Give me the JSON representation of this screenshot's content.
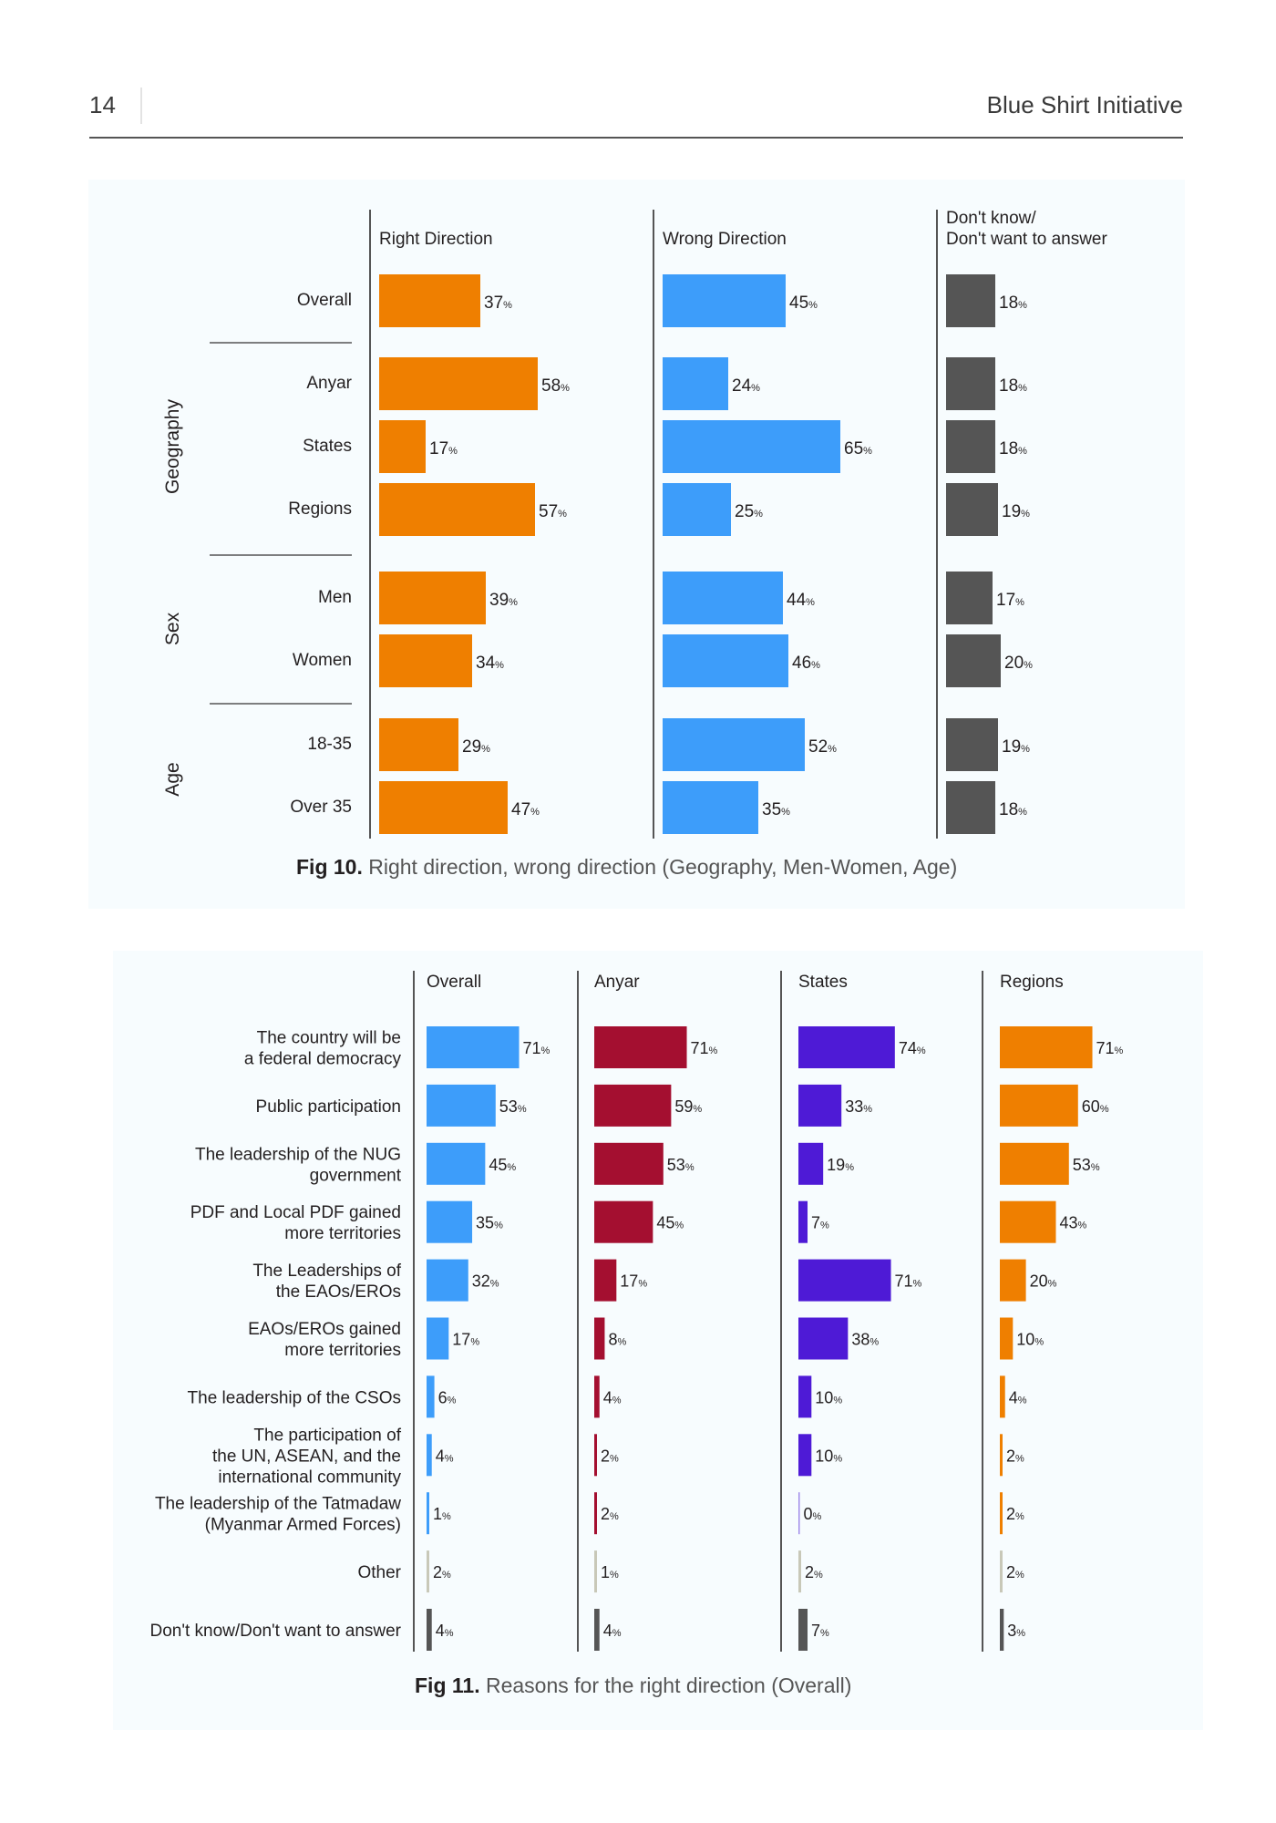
{
  "page": {
    "number": "14",
    "running_head": "Blue Shirt Initiative"
  },
  "colors": {
    "orange": "#ef7f00",
    "blue": "#3d9dfa",
    "dark_gray": "#555555",
    "crimson": "#a40f30",
    "purple": "#4e1ad6",
    "light_gray": "#c8c8b8",
    "axis": "#555555"
  },
  "figures": {
    "fig10": {
      "number": "Fig 10.",
      "title": "Right direction, wrong direction (Geography, Men-Women, Age)"
    },
    "fig11": {
      "number": "Fig 11.",
      "title": "Reasons for the right direction (Overall)"
    }
  },
  "chart_data": [
    {
      "type": "bar",
      "orientation": "horizontal",
      "unit": "%",
      "columns": [
        "Right Direction",
        "Wrong Direction",
        "Don't know/ Don't want to answer"
      ],
      "groups": [
        {
          "name": "",
          "categories": [
            "Overall"
          ]
        },
        {
          "name": "Geography",
          "categories": [
            "Anyar",
            "States",
            "Regions"
          ]
        },
        {
          "name": "Sex",
          "categories": [
            "Men",
            "Women"
          ]
        },
        {
          "name": "Age",
          "categories": [
            "18-35",
            "Over 35"
          ]
        }
      ],
      "categories": [
        "Overall",
        "Anyar",
        "States",
        "Regions",
        "Men",
        "Women",
        "18-35",
        "Over 35"
      ],
      "series": [
        {
          "name": "Right Direction",
          "color": "#ef7f00",
          "values": [
            37,
            58,
            17,
            57,
            39,
            34,
            29,
            47
          ]
        },
        {
          "name": "Wrong Direction",
          "color": "#3d9dfa",
          "values": [
            45,
            24,
            65,
            25,
            44,
            46,
            52,
            35
          ]
        },
        {
          "name": "Don't know/ Don't want to answer",
          "color": "#555555",
          "values": [
            18,
            18,
            18,
            19,
            17,
            20,
            19,
            18
          ]
        }
      ]
    },
    {
      "type": "bar",
      "orientation": "horizontal",
      "unit": "%",
      "categories": [
        "The country will be a federal democracy",
        "Public participation",
        "The leadership of the NUG government",
        "PDF and Local PDF gained more territories",
        "The Leaderships of the EAOs/EROs",
        "EAOs/EROs gained more territories",
        "The leadership of the CSOs",
        "The participation of the UN, ASEAN, and the international community",
        "The leadership of the Tatmadaw (Myanmar Armed Forces)",
        "Other",
        "Don't know/Don't want to answer"
      ],
      "category_lines": [
        [
          "The country will be",
          "a federal democracy"
        ],
        [
          "Public participation"
        ],
        [
          "The leadership of the NUG",
          "government"
        ],
        [
          "PDF and Local PDF gained",
          "more territories"
        ],
        [
          "The Leaderships of",
          "the EAOs/EROs"
        ],
        [
          "EAOs/EROs gained",
          "more territories"
        ],
        [
          "The leadership of the CSOs"
        ],
        [
          "The participation of",
          "the UN, ASEAN, and the",
          "international community"
        ],
        [
          "The leadership of the Tatmadaw",
          "(Myanmar Armed Forces)"
        ],
        [
          "Other"
        ],
        [
          "Don't know/Don't want to answer"
        ]
      ],
      "special_colors": {
        "Other": "#c8c8b8",
        "Don't know/Don't want to answer": "#555555"
      },
      "series": [
        {
          "name": "Overall",
          "color": "#3d9dfa",
          "values": [
            71,
            53,
            45,
            35,
            32,
            17,
            6,
            4,
            1,
            2,
            4
          ]
        },
        {
          "name": "Anyar",
          "color": "#a40f30",
          "values": [
            71,
            59,
            53,
            45,
            17,
            8,
            4,
            2,
            2,
            1,
            4
          ]
        },
        {
          "name": "States",
          "color": "#4e1ad6",
          "values": [
            74,
            33,
            19,
            7,
            71,
            38,
            10,
            10,
            0,
            2,
            7
          ]
        },
        {
          "name": "Regions",
          "color": "#ef7f00",
          "values": [
            71,
            60,
            53,
            43,
            20,
            10,
            4,
            2,
            2,
            2,
            3
          ]
        }
      ]
    }
  ]
}
